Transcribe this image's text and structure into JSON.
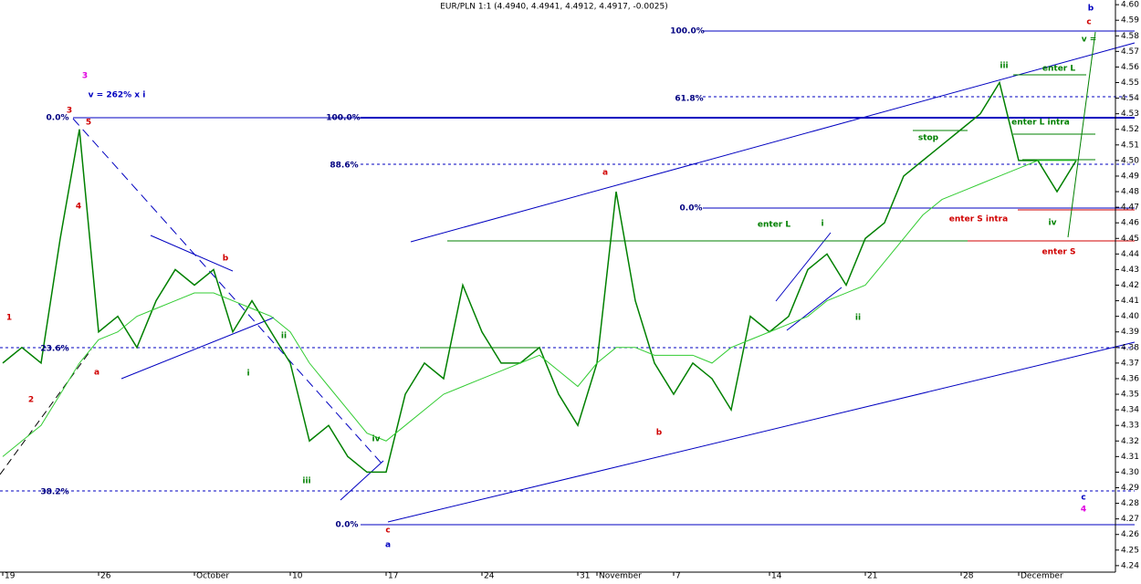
{
  "chart_data": {
    "type": "line",
    "title": "EUR/PLN 1:1 (4.4940, 4.4941, 4.4912, 4.4917, -0.0025)",
    "categories": [
      "19",
      null,
      null,
      null,
      null,
      "26",
      null,
      null,
      null,
      null,
      "October",
      null,
      null,
      null,
      null,
      "10",
      null,
      null,
      null,
      null,
      "17",
      null,
      null,
      null,
      null,
      "24",
      null,
      null,
      null,
      null,
      "31",
      "November",
      null,
      null,
      null,
      "7",
      null,
      null,
      null,
      null,
      "14",
      null,
      null,
      null,
      null,
      "21",
      null,
      null,
      null,
      null,
      "28",
      null,
      null,
      "December",
      null,
      null,
      null
    ],
    "series": [
      {
        "color": "#008000",
        "values": [
          4.37,
          4.38,
          4.37,
          4.45,
          4.52,
          4.39,
          4.4,
          4.38,
          4.41,
          4.43,
          4.42,
          4.43,
          4.39,
          4.41,
          4.39,
          4.37,
          4.32,
          4.33,
          4.31,
          4.3,
          4.3,
          4.35,
          4.37,
          4.36,
          4.42,
          4.39,
          4.37,
          4.37,
          4.38,
          4.35,
          4.33,
          4.37,
          4.48,
          4.41,
          4.37,
          4.35,
          4.37,
          4.36,
          4.34,
          4.4,
          4.39,
          4.4,
          4.43,
          4.44,
          4.42,
          4.45,
          4.46,
          4.49,
          4.5,
          4.51,
          4.52,
          4.53,
          4.55,
          4.5,
          4.5,
          4.48,
          4.5
        ]
      },
      {
        "color": "#33cc33",
        "values": [
          4.31,
          4.32,
          4.33,
          4.35,
          4.37,
          4.385,
          4.39,
          4.4,
          4.405,
          4.41,
          4.415,
          4.415,
          4.41,
          4.405,
          4.4,
          4.39,
          4.37,
          4.355,
          4.34,
          4.325,
          4.32,
          4.33,
          4.34,
          4.35,
          4.355,
          4.36,
          4.365,
          4.37,
          4.375,
          4.365,
          4.355,
          4.37,
          4.38,
          4.38,
          4.375,
          4.375,
          4.375,
          4.37,
          4.38,
          4.385,
          4.39,
          4.395,
          4.4,
          4.41,
          4.415,
          4.42,
          4.435,
          4.45,
          4.465,
          4.475,
          4.48,
          4.485,
          4.49,
          4.495,
          4.5,
          4.5,
          4.5
        ]
      }
    ],
    "ylim": [
      4.237,
      4.603
    ],
    "yticks": [
      4.24,
      4.25,
      4.26,
      4.27,
      4.28,
      4.29,
      {
        "value": 4.3,
        "label": "4.30"
      },
      4.31,
      4.32,
      4.33,
      4.34,
      4.35,
      4.36,
      4.37,
      4.38,
      4.39,
      {
        "value": 4.4,
        "label": "4.40"
      },
      4.41,
      4.42,
      4.43,
      4.44,
      4.45,
      4.46,
      4.47,
      4.48,
      4.49,
      {
        "value": 4.5,
        "label": "4.50"
      },
      4.51,
      4.52,
      4.53,
      4.54,
      4.55,
      4.56,
      4.57,
      4.58,
      4.59,
      {
        "value": 4.6,
        "label": "4.60"
      }
    ],
    "annotations": [
      {
        "text": "3",
        "color": "#e000e0"
      },
      {
        "text": "v = 262% x i",
        "color": "#0000c0"
      },
      {
        "text": "3",
        "color": "#d00000"
      },
      {
        "text": "5",
        "color": "#d00000"
      },
      {
        "text": "4",
        "color": "#d00000"
      },
      {
        "text": "1",
        "color": "#d00000"
      },
      {
        "text": "2",
        "color": "#d00000"
      },
      {
        "text": "a",
        "color": "#d00000"
      },
      {
        "text": "b",
        "color": "#d00000"
      },
      {
        "text": "i",
        "color": "#008000"
      },
      {
        "text": "ii",
        "color": "#008000"
      },
      {
        "text": "iii",
        "color": "#008000"
      },
      {
        "text": "iv",
        "color": "#008000"
      },
      {
        "text": "c",
        "color": "#d00000"
      },
      {
        "text": "a",
        "color": "#0000c0"
      },
      {
        "text": "a",
        "color": "#d00000"
      },
      {
        "text": "b",
        "color": "#d00000"
      },
      {
        "text": "i",
        "color": "#008000"
      },
      {
        "text": "ii",
        "color": "#008000"
      },
      {
        "text": "iii",
        "color": "#008000"
      },
      {
        "text": "iv",
        "color": "#008000"
      },
      {
        "text": "b",
        "color": "#0000c0"
      },
      {
        "text": "c",
        "color": "#d00000"
      },
      {
        "text": "v =",
        "color": "#008000"
      },
      {
        "text": "c",
        "color": "#0000c0"
      },
      {
        "text": "4",
        "color": "#e000e0"
      },
      {
        "text": "stop",
        "color": "#008000"
      },
      {
        "text": "enter L",
        "color": "#008000"
      },
      {
        "text": "enter L",
        "color": "#008000"
      },
      {
        "text": "enter L intra",
        "color": "#008000"
      },
      {
        "text": "enter S intra",
        "color": "#d00000"
      },
      {
        "text": "enter S",
        "color": "#d00000"
      },
      {
        "text": "0.0%",
        "color": "#000080"
      },
      {
        "text": "23.6%",
        "color": "#000080"
      },
      {
        "text": "38.2%",
        "color": "#000080"
      },
      {
        "text": "100.0%",
        "color": "#000080"
      },
      {
        "text": "88.6%",
        "color": "#000080"
      },
      {
        "text": "0.0%",
        "color": "#000080"
      },
      {
        "text": "100.0%",
        "color": "#000080"
      },
      {
        "text": "61.8%",
        "color": "#000080"
      },
      {
        "text": "0.0%",
        "color": "#000080"
      }
    ]
  }
}
